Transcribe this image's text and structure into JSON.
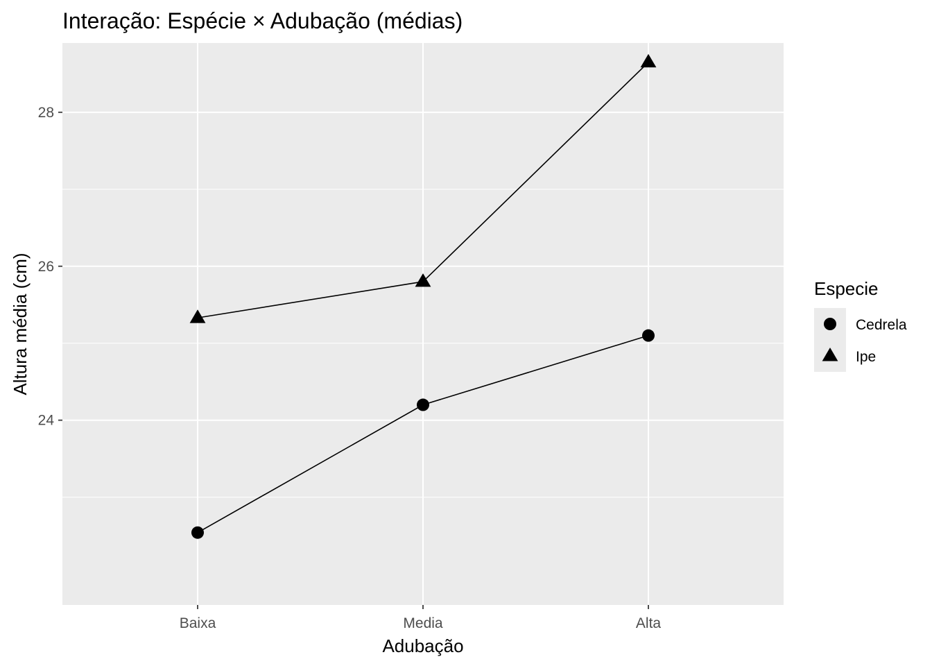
{
  "chart_data": {
    "type": "line",
    "title": "Interação: Espécie × Adubação (médias)",
    "xlabel": "Adubação",
    "ylabel": "Altura média (cm)",
    "categories": [
      "Baixa",
      "Media",
      "Alta"
    ],
    "ylim": [
      21.6,
      28.9
    ],
    "yticks": [
      24,
      26,
      28
    ],
    "yticks_labels": [
      "24",
      "26",
      "28"
    ],
    "grid": true,
    "legend": {
      "title": "Especie",
      "position": "right"
    },
    "series": [
      {
        "name": "Cedrela",
        "shape": "circle",
        "values": [
          22.54,
          24.2,
          25.1
        ]
      },
      {
        "name": "Ipe",
        "shape": "triangle",
        "values": [
          25.33,
          25.8,
          28.65
        ]
      }
    ],
    "colors": {
      "panel": "#ebebeb",
      "grid": "#ffffff",
      "marks": "#000000",
      "ticks": "#4d4d4d"
    }
  }
}
